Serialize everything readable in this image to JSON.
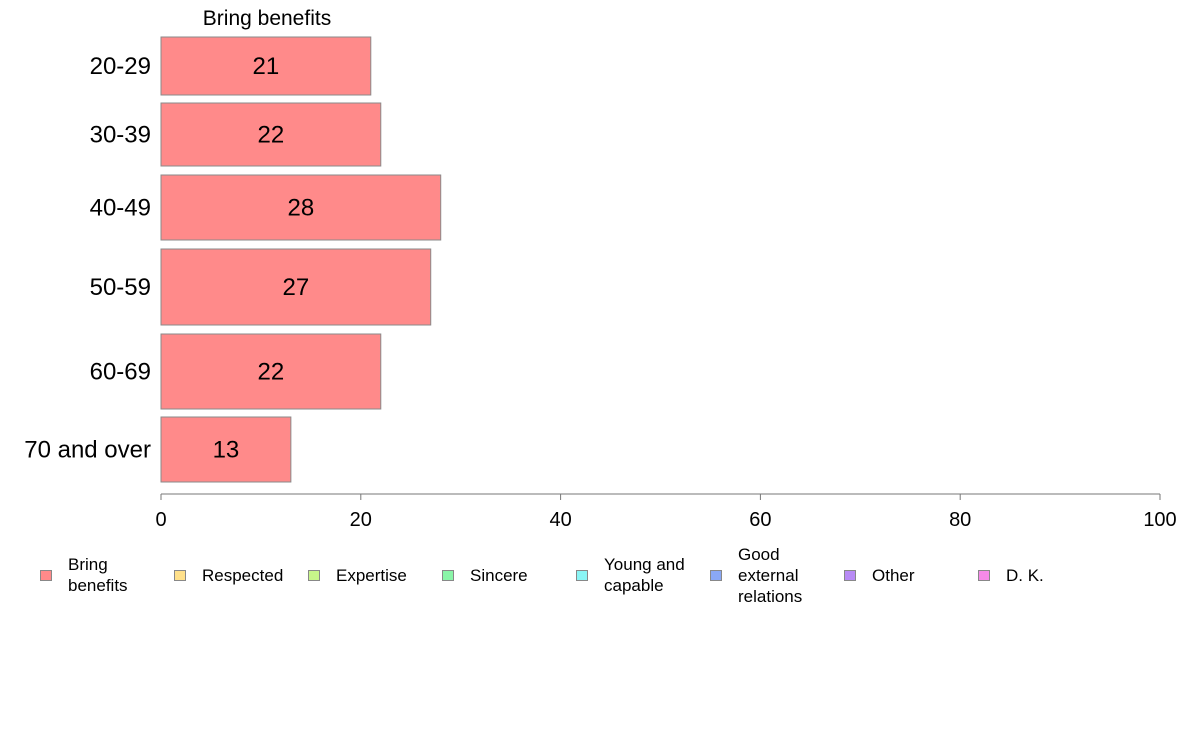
{
  "chart_data": {
    "type": "bar",
    "orientation": "horizontal",
    "title": "Bring benefits",
    "categories": [
      "20-29",
      "30-39",
      "40-49",
      "50-59",
      "60-69",
      "70 and over"
    ],
    "series": [
      {
        "name": "Bring benefits",
        "values": [
          21,
          22,
          28,
          27,
          22,
          13
        ]
      }
    ],
    "xlim": [
      0,
      100
    ],
    "xticks": [
      0,
      20,
      40,
      60,
      80,
      100
    ],
    "grid": false,
    "legend_position": "bottom"
  },
  "legend": [
    {
      "label": "Bring\nbenefits",
      "color": "#ff8a8a"
    },
    {
      "label": "Respected",
      "color": "#ffe08a"
    },
    {
      "label": "Expertise",
      "color": "#c8f58a"
    },
    {
      "label": "Sincere",
      "color": "#8af5a8"
    },
    {
      "label": "Young and\ncapable",
      "color": "#8af5f5"
    },
    {
      "label": "Good\nexternal\nrelations",
      "color": "#8aa8f5"
    },
    {
      "label": "Other",
      "color": "#b88af5"
    },
    {
      "label": "D. K.",
      "color": "#f58ae8"
    }
  ]
}
